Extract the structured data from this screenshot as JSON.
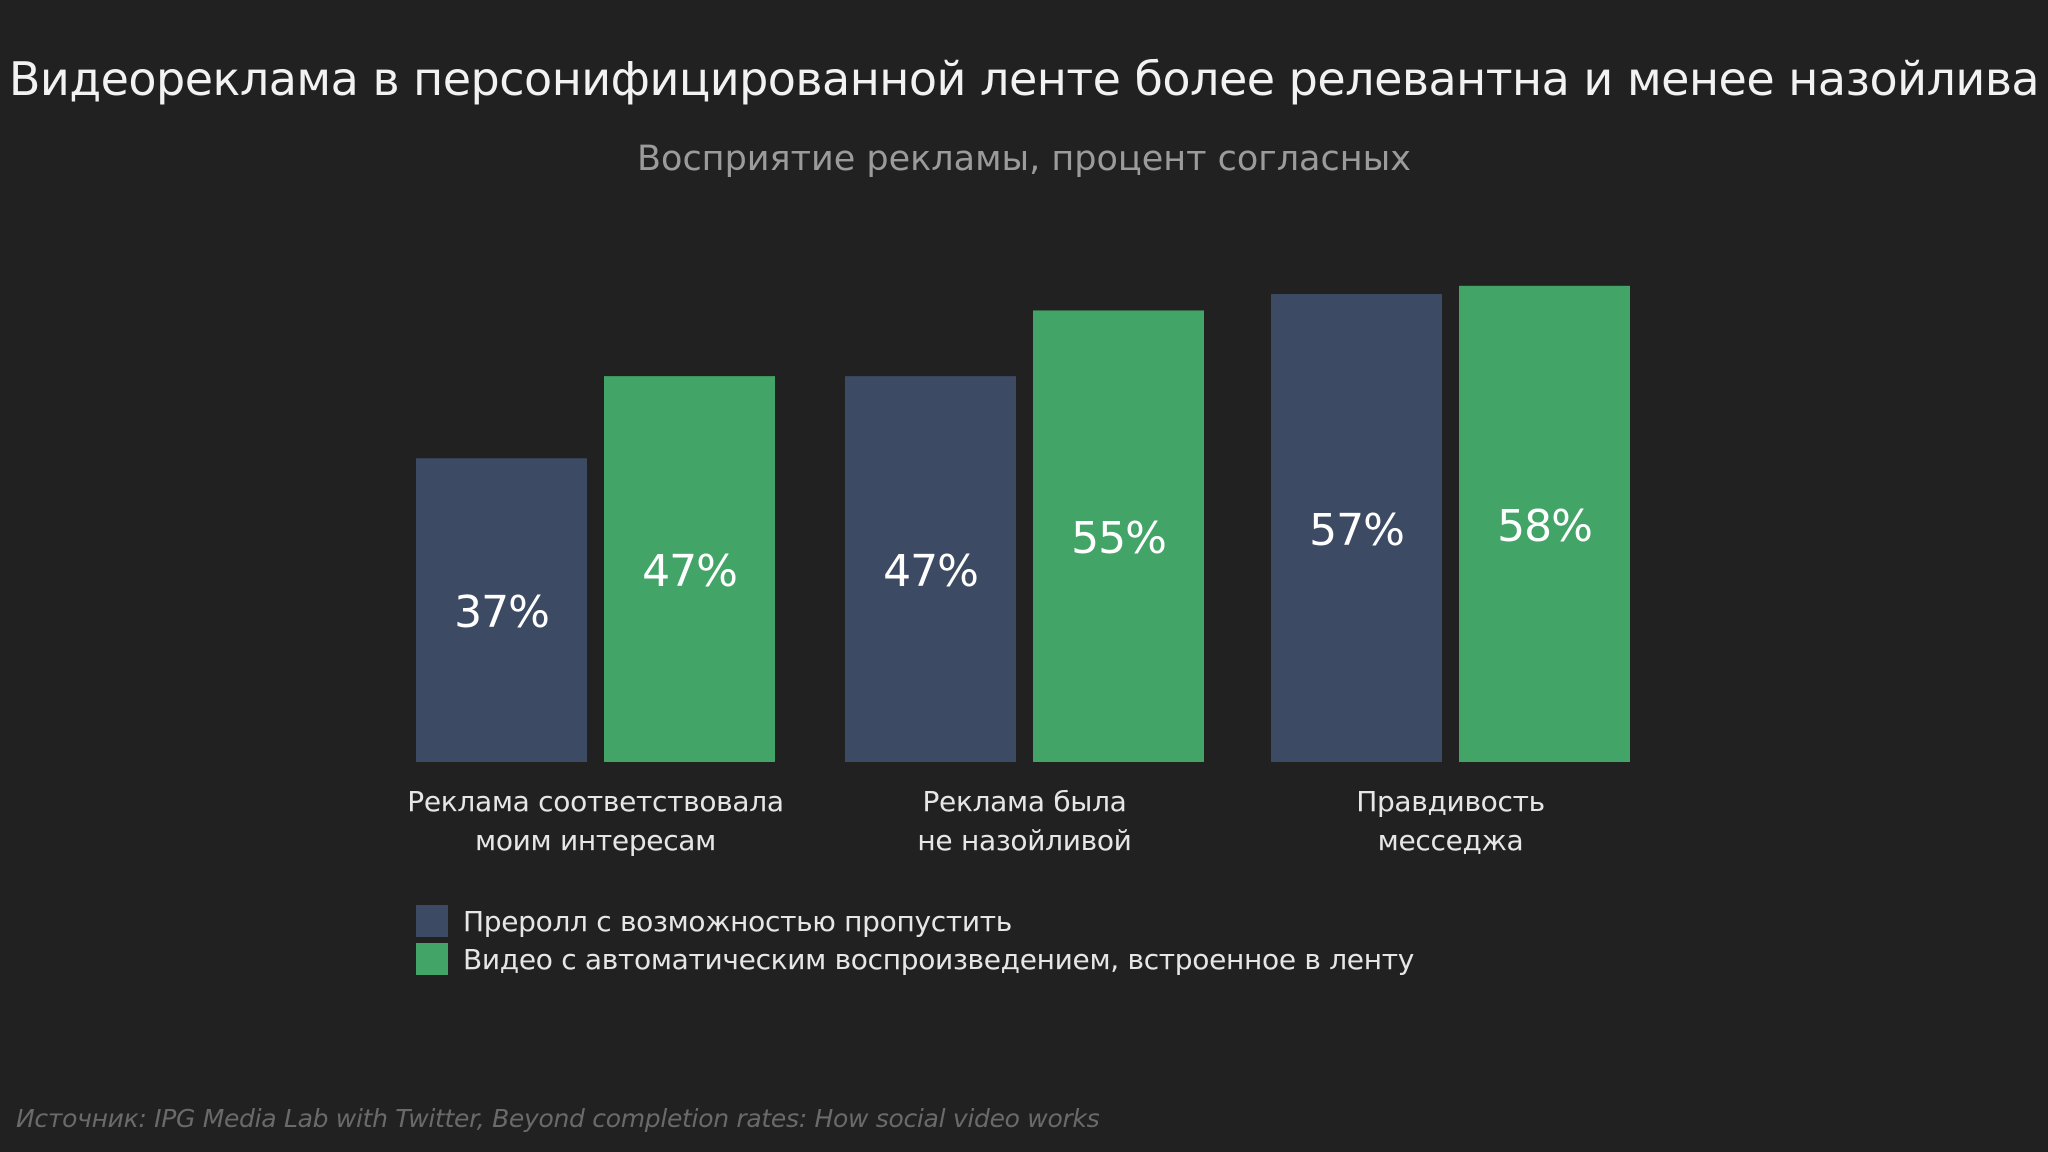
{
  "chart_data": {
    "type": "bar",
    "title": "Видеореклама в персонифицированной ленте более релевантна и менее назойлива",
    "subtitle": "Восприятие рекламы, процент согласных",
    "categories": [
      [
        "Реклама соответствовала",
        "моим интересам"
      ],
      [
        "Реклама была",
        "не назойливой"
      ],
      [
        "Правдивость",
        "месседжа"
      ]
    ],
    "series": [
      {
        "name": "Преролл с возможностью пропустить",
        "color": "#3d4a63",
        "values": [
          37,
          47,
          57
        ],
        "labels": [
          "37%",
          "47%",
          "57%"
        ]
      },
      {
        "name": "Видео с автоматическим воспроизведением, встроенное в ленту",
        "color": "#43a468",
        "values": [
          47,
          55,
          58
        ],
        "labels": [
          "47%",
          "55%",
          "58%"
        ]
      }
    ],
    "legend_position": "bottom-left",
    "grid": false
  },
  "source": "Источник: IPG Media Lab with Twitter, Beyond completion rates: How social video works"
}
